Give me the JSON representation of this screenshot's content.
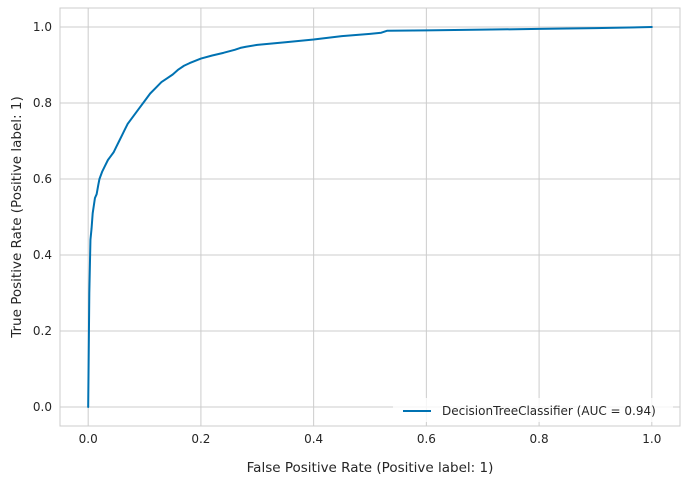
{
  "chart_data": {
    "type": "line",
    "title": "",
    "xlabel": "False Positive Rate (Positive label: 1)",
    "ylabel": "True Positive Rate (Positive label: 1)",
    "xlim": [
      -0.05,
      1.05
    ],
    "ylim": [
      -0.05,
      1.05
    ],
    "x_ticks": [
      0.0,
      0.2,
      0.4,
      0.6,
      0.8,
      1.0
    ],
    "x_tick_labels": [
      "0.0",
      "0.2",
      "0.4",
      "0.6",
      "0.8",
      "1.0"
    ],
    "y_ticks": [
      0.0,
      0.2,
      0.4,
      0.6,
      0.8,
      1.0
    ],
    "y_tick_labels": [
      "0.0",
      "0.2",
      "0.4",
      "0.6",
      "0.8",
      "1.0"
    ],
    "grid": true,
    "legend_position": "lower-right",
    "series": [
      {
        "name": "DecisionTreeClassifier (AUC = 0.94)",
        "color": "#0072b2",
        "x": [
          0.0,
          0.002,
          0.004,
          0.006,
          0.008,
          0.01,
          0.012,
          0.015,
          0.018,
          0.02,
          0.025,
          0.03,
          0.035,
          0.04,
          0.045,
          0.05,
          0.055,
          0.06,
          0.065,
          0.07,
          0.08,
          0.09,
          0.1,
          0.11,
          0.12,
          0.13,
          0.14,
          0.15,
          0.16,
          0.17,
          0.18,
          0.2,
          0.22,
          0.24,
          0.26,
          0.27,
          0.28,
          0.3,
          0.35,
          0.4,
          0.45,
          0.5,
          0.52,
          0.53,
          0.6,
          0.7,
          0.8,
          0.9,
          1.0
        ],
        "y": [
          0.0,
          0.3,
          0.44,
          0.47,
          0.51,
          0.53,
          0.55,
          0.56,
          0.585,
          0.6,
          0.62,
          0.635,
          0.65,
          0.66,
          0.67,
          0.685,
          0.7,
          0.715,
          0.73,
          0.745,
          0.765,
          0.785,
          0.805,
          0.825,
          0.84,
          0.855,
          0.865,
          0.875,
          0.888,
          0.898,
          0.905,
          0.917,
          0.925,
          0.932,
          0.94,
          0.945,
          0.948,
          0.953,
          0.96,
          0.967,
          0.976,
          0.982,
          0.985,
          0.99,
          0.991,
          0.993,
          0.995,
          0.997,
          1.0
        ]
      }
    ]
  }
}
